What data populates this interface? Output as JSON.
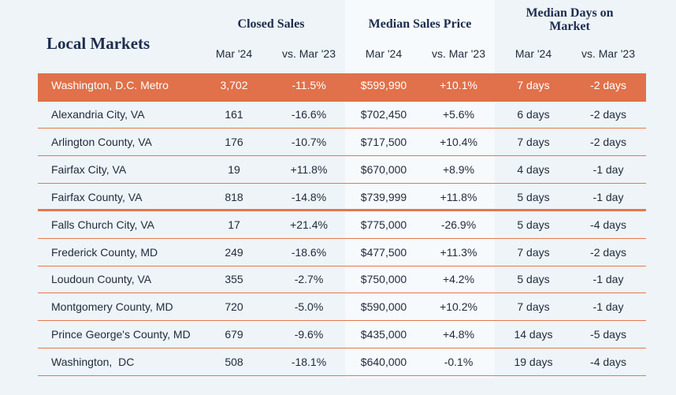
{
  "header": {
    "title": "Local Markets",
    "groups": [
      "Closed Sales",
      "Median Sales Price",
      "Median Days on Market"
    ],
    "columns": [
      "Mar '24",
      "vs. Mar '23",
      "Mar '24",
      "vs. Mar '23",
      "Mar '24",
      "vs. Mar '23"
    ]
  },
  "table": {
    "rows": [
      [
        "Washington, D.C. Metro",
        "3,702",
        "-11.5%",
        "$599,990",
        "+10.1%",
        "7 days",
        "-2 days"
      ],
      [
        "Alexandria City, VA",
        "161",
        "-16.6%",
        "$702,450",
        "+5.6%",
        "6 days",
        "-2 days"
      ],
      [
        "Arlington County, VA",
        "176",
        "-10.7%",
        "$717,500",
        "+10.4%",
        "7 days",
        "-2 days"
      ],
      [
        "Fairfax City, VA",
        "19",
        "+11.8%",
        "$670,000",
        "+8.9%",
        "4 days",
        "-1 day"
      ],
      [
        "Fairfax County, VA",
        "818",
        "-14.8%",
        "$739,999",
        "+11.8%",
        "5 days",
        "-1 day"
      ],
      [
        "Falls Church City, VA",
        "17",
        "+21.4%",
        "$775,000",
        "-26.9%",
        "5 days",
        "-4 days"
      ],
      [
        "Frederick County, MD",
        "249",
        "-18.6%",
        "$477,500",
        "+11.3%",
        "7 days",
        "-2 days"
      ],
      [
        "Loudoun County, VA",
        "355",
        "-2.7%",
        "$750,000",
        "+4.2%",
        "5 days",
        "-1 day"
      ],
      [
        "Montgomery County, MD",
        "720",
        "-5.0%",
        "$590,000",
        "+10.2%",
        "7 days",
        "-1 day"
      ],
      [
        "Prince George's County, MD",
        "679",
        "-9.6%",
        "$435,000",
        "+4.8%",
        "14 days",
        "-5 days"
      ],
      [
        "Washington,  DC",
        "508",
        "-18.1%",
        "$640,000",
        "-0.1%",
        "19 days",
        "-4 days"
      ]
    ]
  }
}
